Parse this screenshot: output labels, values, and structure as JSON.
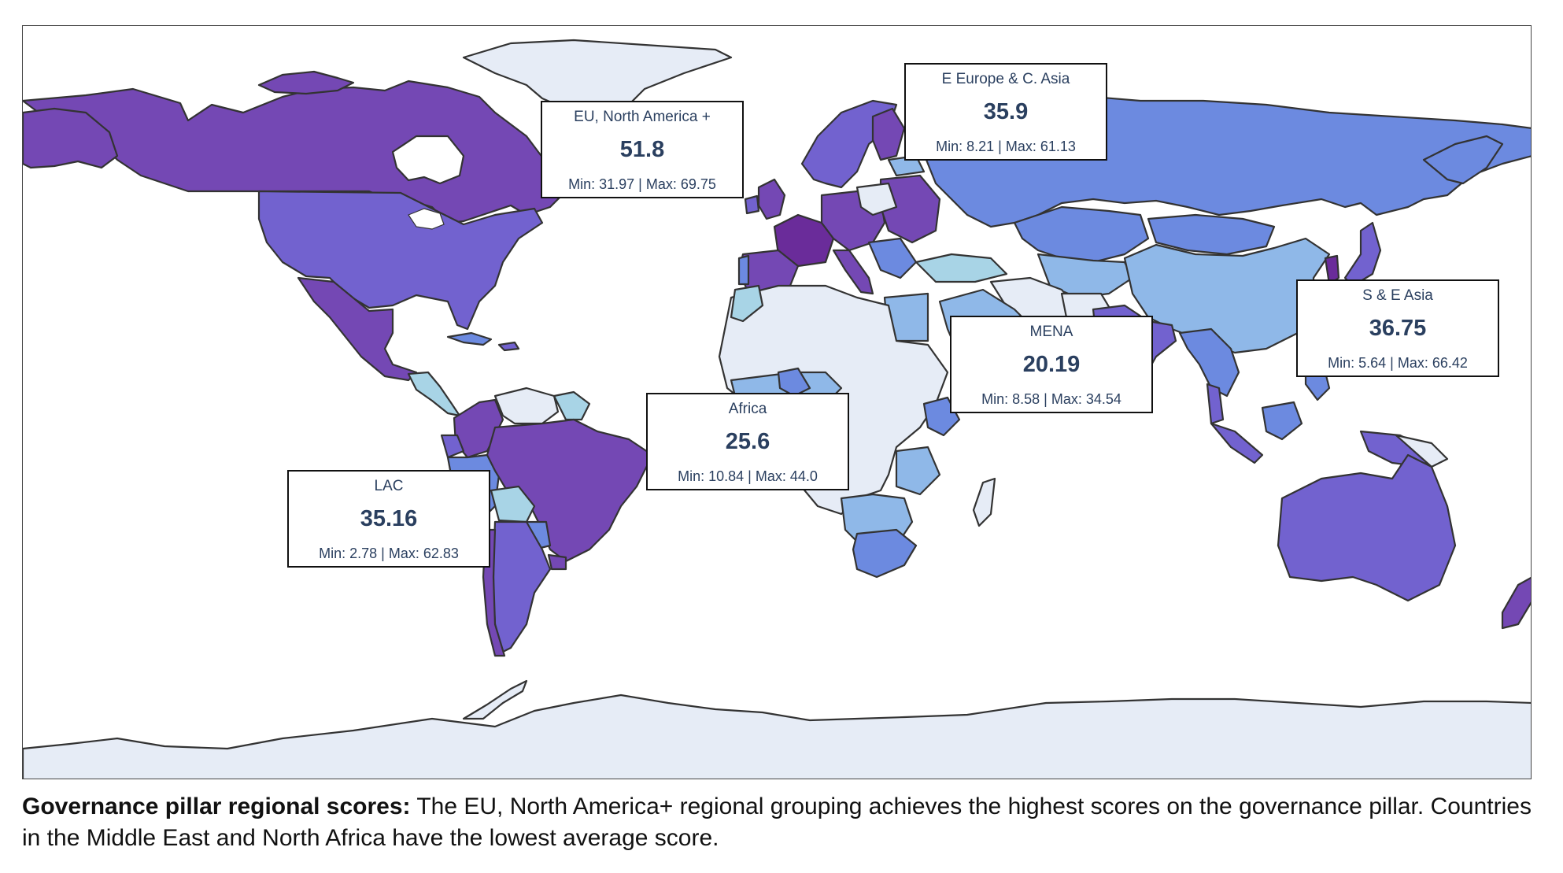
{
  "caption": {
    "lead": "Governance pillar regional scores:",
    "text": " The EU, North America+ regional grouping achieves the highest scores on the governance pillar. Countries in the Middle East and North Africa have the lowest average score."
  },
  "colors": {
    "frame": "#444444",
    "country_border": "#333333",
    "ocean": "#ffffff",
    "no_data": "#e6ecf6",
    "scale": [
      "#e6ecf6",
      "#a8d4e6",
      "#8fb8e8",
      "#6c8ae0",
      "#7262cf",
      "#7448b4",
      "#6a2c9a"
    ]
  },
  "regions": [
    {
      "id": "eu-na",
      "name": "EU, North America +",
      "avg": "51.8",
      "range": "Min: 31.97 | Max: 69.75"
    },
    {
      "id": "eeca",
      "name": "E Europe & C. Asia",
      "avg": "35.9",
      "range": "Min: 8.21 | Max: 61.13"
    },
    {
      "id": "sea",
      "name": "S & E Asia",
      "avg": "36.75",
      "range": "Min: 5.64 | Max: 66.42"
    },
    {
      "id": "mena",
      "name": "MENA",
      "avg": "20.19",
      "range": "Min: 8.58 | Max: 34.54"
    },
    {
      "id": "africa",
      "name": "Africa",
      "avg": "25.6",
      "range": "Min: 10.84 | Max: 44.0"
    },
    {
      "id": "lac",
      "name": "LAC",
      "avg": "35.16",
      "range": "Min: 2.78 | Max: 62.83"
    }
  ]
}
